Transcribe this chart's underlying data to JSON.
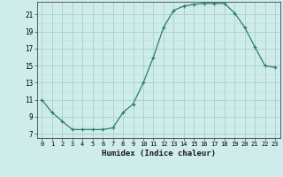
{
  "xlabel": "Humidex (Indice chaleur)",
  "x": [
    0,
    1,
    2,
    3,
    4,
    5,
    6,
    7,
    8,
    9,
    10,
    11,
    12,
    13,
    14,
    15,
    16,
    17,
    18,
    19,
    20,
    21,
    22,
    23
  ],
  "y": [
    11,
    9.5,
    8.5,
    7.5,
    7.5,
    7.5,
    7.5,
    7.7,
    9.5,
    10.5,
    13,
    16,
    19.5,
    21.5,
    22,
    22.2,
    22.3,
    22.3,
    22.3,
    21.2,
    19.5,
    17.2,
    15,
    14.8
  ],
  "line_color": "#2e7d6e",
  "marker": "+",
  "marker_size": 3,
  "bg_color": "#ceecea",
  "grid_color_major": "#aacfcc",
  "grid_color_minor": "#bddedd",
  "xlim": [
    -0.5,
    23.5
  ],
  "ylim": [
    6.5,
    22.5
  ],
  "yticks": [
    7,
    9,
    11,
    13,
    15,
    17,
    19,
    21
  ],
  "xticks": [
    0,
    1,
    2,
    3,
    4,
    5,
    6,
    7,
    8,
    9,
    10,
    11,
    12,
    13,
    14,
    15,
    16,
    17,
    18,
    19,
    20,
    21,
    22,
    23
  ]
}
